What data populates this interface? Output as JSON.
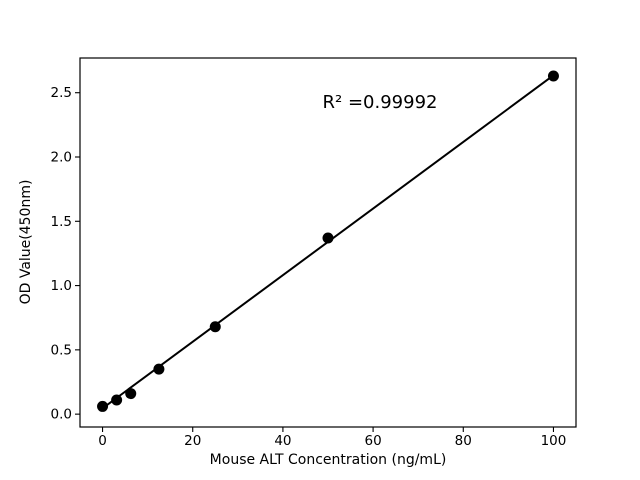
{
  "chart_data": {
    "type": "scatter",
    "title": "",
    "xlabel": "Mouse ALT Concentration (ng/mL)",
    "ylabel": "OD Value(450nm)",
    "annotation_text": "R² =0.99992",
    "x": [
      0,
      3.125,
      6.25,
      12.5,
      25,
      50,
      100
    ],
    "y": [
      0.06,
      0.11,
      0.16,
      0.35,
      0.68,
      1.37,
      2.63
    ],
    "fit_line": {
      "x": [
        0,
        100
      ],
      "y": [
        0.045,
        2.635
      ]
    },
    "x_ticks": [
      0,
      20,
      40,
      60,
      80,
      100
    ],
    "y_ticks": [
      0.0,
      0.5,
      1.0,
      1.5,
      2.0,
      2.5
    ],
    "xlim": [
      -5,
      105
    ],
    "ylim": [
      -0.1,
      2.77
    ],
    "grid": false,
    "legend": "none",
    "colors": {
      "marker": "#000000",
      "line": "#000000",
      "axis": "#000000",
      "background": "#ffffff"
    }
  }
}
